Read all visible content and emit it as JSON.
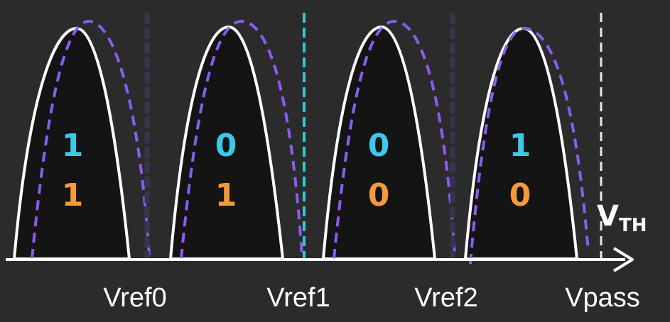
{
  "colors": {
    "background": "#2b2b2b",
    "curve_fill": "#141414",
    "curve_outline": "#ffffff",
    "shifted_dash": "#8a5cf0",
    "top_bit": "#3ec8ea",
    "bottom_bit": "#f29a3c",
    "reference_default": "#3a3350",
    "reference_selected": "#36c6d6",
    "pass_line": "#e8e8e8",
    "text": "#ffffff"
  },
  "states": [
    {
      "top_bit": "1",
      "bottom_bit": "1"
    },
    {
      "top_bit": "0",
      "bottom_bit": "1"
    },
    {
      "top_bit": "0",
      "bottom_bit": "0"
    },
    {
      "top_bit": "1",
      "bottom_bit": "0"
    }
  ],
  "references": [
    {
      "label": "Vref0",
      "selected": false
    },
    {
      "label": "Vref1",
      "selected": true
    },
    {
      "label": "Vref2",
      "selected": false
    },
    {
      "label": "Vpass",
      "selected": false
    }
  ],
  "axis": {
    "label_main": "V",
    "label_sub": "TH"
  }
}
